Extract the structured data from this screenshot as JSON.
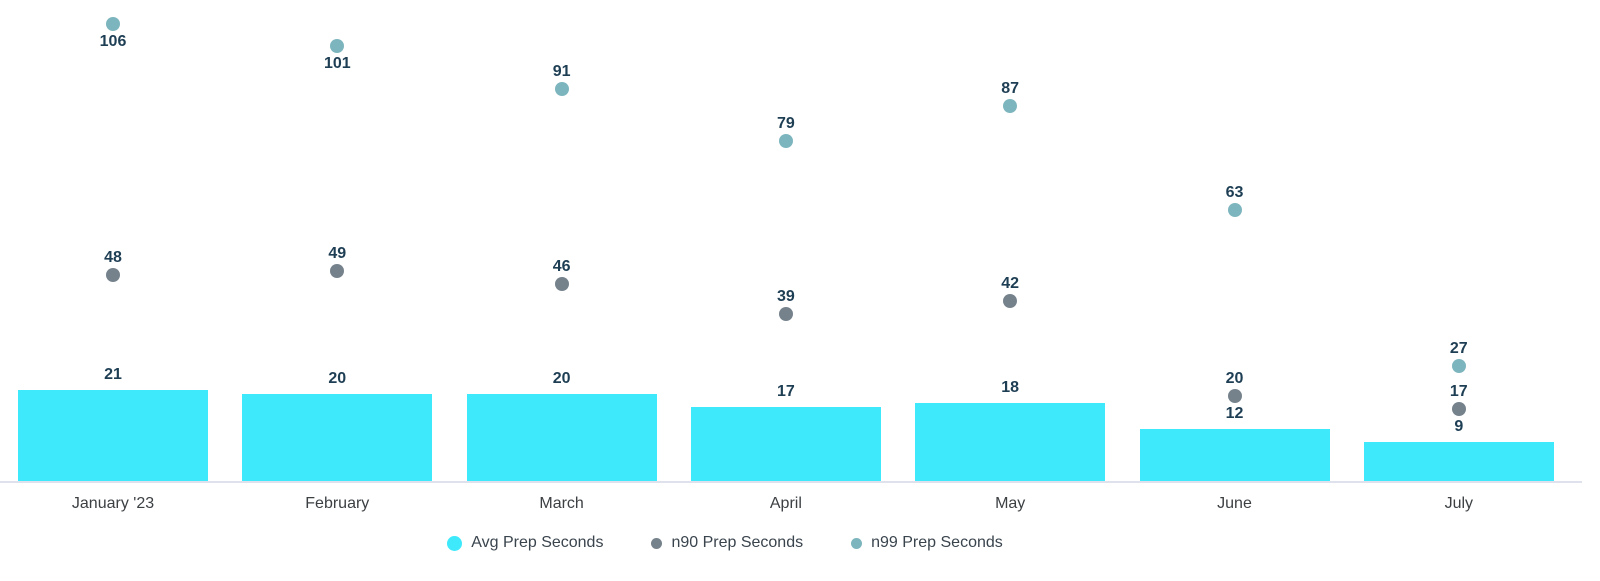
{
  "chart_data": {
    "type": "combo",
    "categories": [
      "January '23",
      "February",
      "March",
      "April",
      "May",
      "June",
      "July"
    ],
    "series": [
      {
        "name": "Avg Prep Seconds",
        "type": "bar",
        "color": "#3DE9FB",
        "values": [
          21,
          20,
          20,
          17,
          18,
          12,
          9
        ]
      },
      {
        "name": "n90 Prep Seconds",
        "type": "scatter",
        "color": "#75828C",
        "values": [
          48,
          49,
          46,
          39,
          42,
          20,
          17
        ]
      },
      {
        "name": "n99 Prep Seconds",
        "type": "scatter",
        "color": "#7DB5BE",
        "values": [
          106,
          101,
          91,
          79,
          87,
          63,
          27
        ]
      }
    ],
    "value_labels": true,
    "legend_position": "bottom",
    "ylim": [
      0,
      112
    ],
    "grid": false,
    "title": "",
    "xlabel": "",
    "ylabel": ""
  },
  "colors": {
    "bar": "#3DE9FB",
    "n90_dot": "#75828C",
    "n99_dot": "#7DB5BE",
    "value_label": "#1E3E54",
    "axis_label": "#3C4043",
    "legend_label": "#3A444D",
    "axis_line": "#DFE2EC",
    "background": "#FFFFFF"
  }
}
